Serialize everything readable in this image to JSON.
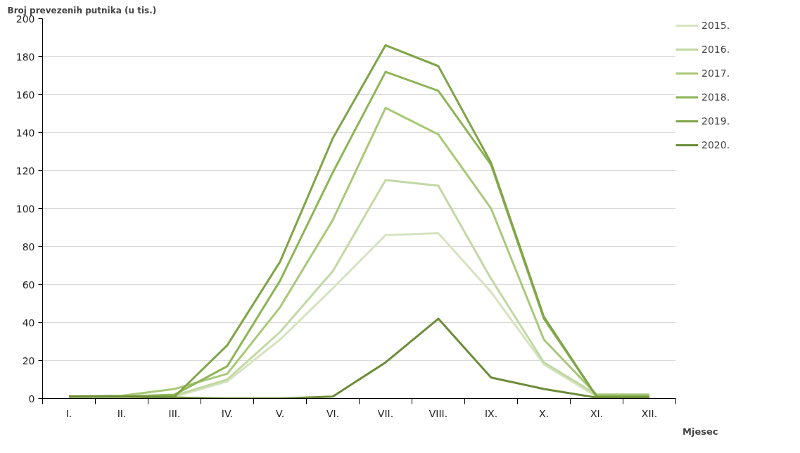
{
  "chart_data": {
    "type": "line",
    "ylabel": "Broj prevezenih putnika (u tis.)",
    "xlabel": "Mjesec",
    "categories": [
      "I.",
      "II.",
      "III.",
      "IV.",
      "V.",
      "VI.",
      "VII.",
      "VIII.",
      "IX.",
      "X.",
      "XI.",
      "XII."
    ],
    "ylim": [
      0,
      200
    ],
    "yticks": [
      0,
      20,
      40,
      60,
      80,
      100,
      120,
      140,
      160,
      180,
      200
    ],
    "grid": "y",
    "legend": "top right",
    "marker": "none",
    "line_style": "solid",
    "series": [
      {
        "name": "2015.",
        "color": "#d5e3c0",
        "values": [
          0.5,
          0.5,
          1,
          9,
          31,
          58,
          86,
          87,
          56,
          18,
          1,
          1
        ]
      },
      {
        "name": "2016.",
        "color": "#c2d8a4",
        "values": [
          0.5,
          0.5,
          1.5,
          10,
          35,
          67,
          115,
          112,
          63,
          19,
          2,
          2
        ]
      },
      {
        "name": "2017.",
        "color": "#a9c878",
        "values": [
          1,
          1.5,
          5,
          13,
          48,
          94,
          153,
          139,
          100,
          31,
          2,
          2
        ]
      },
      {
        "name": "2018.",
        "color": "#8db556",
        "values": [
          1,
          1,
          2,
          17,
          62,
          119,
          172,
          162,
          123,
          42,
          1,
          1
        ]
      },
      {
        "name": "2019.",
        "color": "#7fa547",
        "values": [
          1,
          1,
          1,
          28,
          72,
          137,
          186,
          175,
          124,
          43,
          1,
          1
        ]
      },
      {
        "name": "2020.",
        "color": "#6c8c3a",
        "values": [
          1,
          1,
          0.5,
          0,
          0,
          1,
          19,
          42,
          11,
          5,
          0.5,
          0.5
        ]
      }
    ]
  }
}
